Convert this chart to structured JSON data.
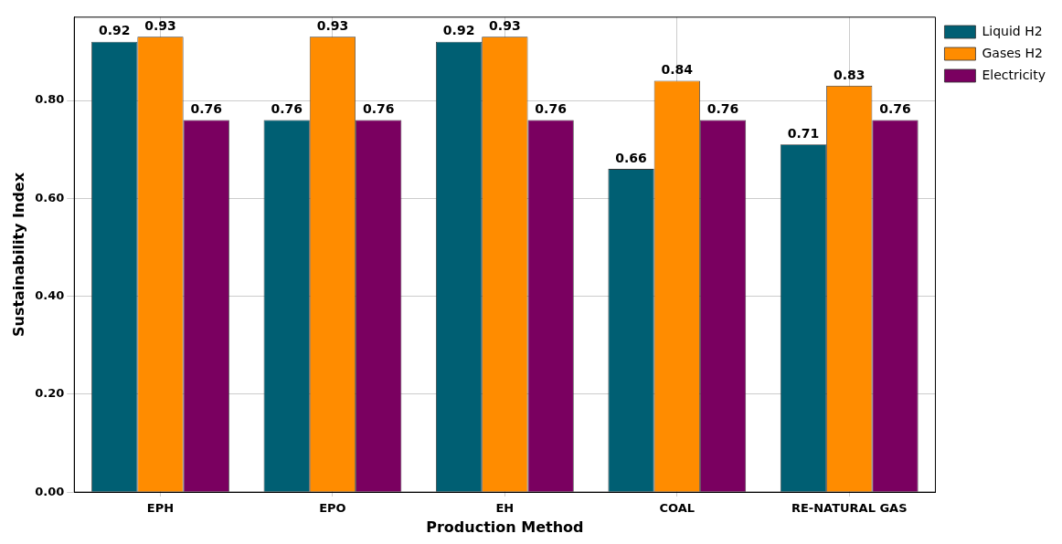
{
  "chart_data": {
    "type": "bar",
    "xlabel": "Production Method",
    "ylabel": "Sustainability Index",
    "categories": [
      "EPH",
      "EPO",
      "EH",
      "COAL",
      "RE-NATURAL GAS"
    ],
    "series": [
      {
        "name": "Liquid H2",
        "color": "#005f73",
        "values": [
          0.92,
          0.76,
          0.92,
          0.66,
          0.71
        ]
      },
      {
        "name": "Gases H2",
        "color": "#ff8c00",
        "values": [
          0.93,
          0.93,
          0.93,
          0.84,
          0.83
        ]
      },
      {
        "name": "Electricity",
        "color": "#7a0060",
        "values": [
          0.76,
          0.76,
          0.76,
          0.76,
          0.76
        ]
      }
    ],
    "ylim": [
      0,
      0.97
    ],
    "yticks": [
      {
        "value": 0,
        "label": "0.00"
      },
      {
        "value": 0.2,
        "label": "0.20"
      },
      {
        "value": 0.4,
        "label": "0.40"
      },
      {
        "value": 0.6,
        "label": "0.60"
      },
      {
        "value": 0.8,
        "label": "0.80"
      }
    ],
    "grid": true,
    "legend": "top right",
    "data_labels": true
  }
}
